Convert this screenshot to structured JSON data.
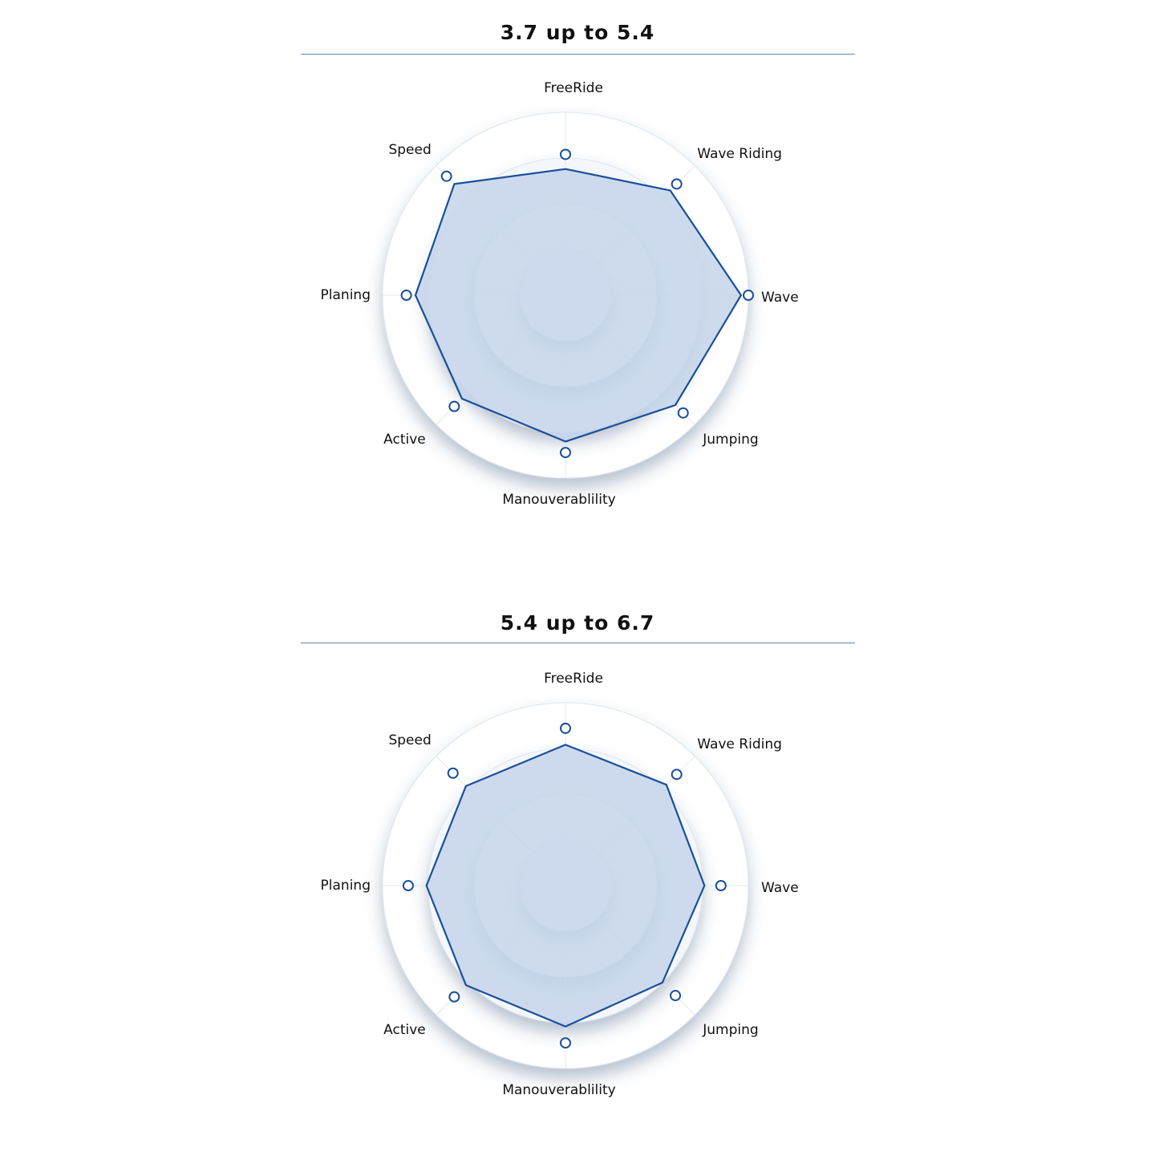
{
  "chart_data": [
    {
      "type": "radar",
      "title": "3.7 up to 5.4",
      "axes": [
        "FreeRide",
        "Wave Riding",
        "Wave",
        "Jumping",
        "Manouverablility",
        "Active",
        "Planing",
        "Speed"
      ],
      "values": [
        6.9,
        8.1,
        9.6,
        8.5,
        8.0,
        8.0,
        8.2,
        8.6
      ],
      "markers": [
        7.7,
        8.6,
        10.0,
        9.1,
        8.6,
        8.6,
        8.7,
        9.2
      ],
      "range": [
        0,
        10
      ],
      "grid_levels": 4,
      "colors": {
        "line": "#1a4f99",
        "fill": "#c6d5ea",
        "marker_stroke": "#1a4f99",
        "marker_fill": "#ffffff"
      }
    },
    {
      "type": "radar",
      "title": "5.4 up to 6.7",
      "axes": [
        "FreeRide",
        "Wave Riding",
        "Wave",
        "Jumping",
        "Manouverablility",
        "Active",
        "Planing",
        "Speed"
      ],
      "values": [
        7.7,
        7.8,
        7.6,
        7.5,
        7.7,
        7.7,
        7.6,
        7.7
      ],
      "markers": [
        8.6,
        8.6,
        8.5,
        8.5,
        8.6,
        8.6,
        8.6,
        8.7
      ],
      "range": [
        0,
        10
      ],
      "grid_levels": 4,
      "colors": {
        "line": "#1a4f99",
        "fill": "#c6d5ea",
        "marker_stroke": "#1a4f99",
        "marker_fill": "#ffffff"
      }
    }
  ]
}
